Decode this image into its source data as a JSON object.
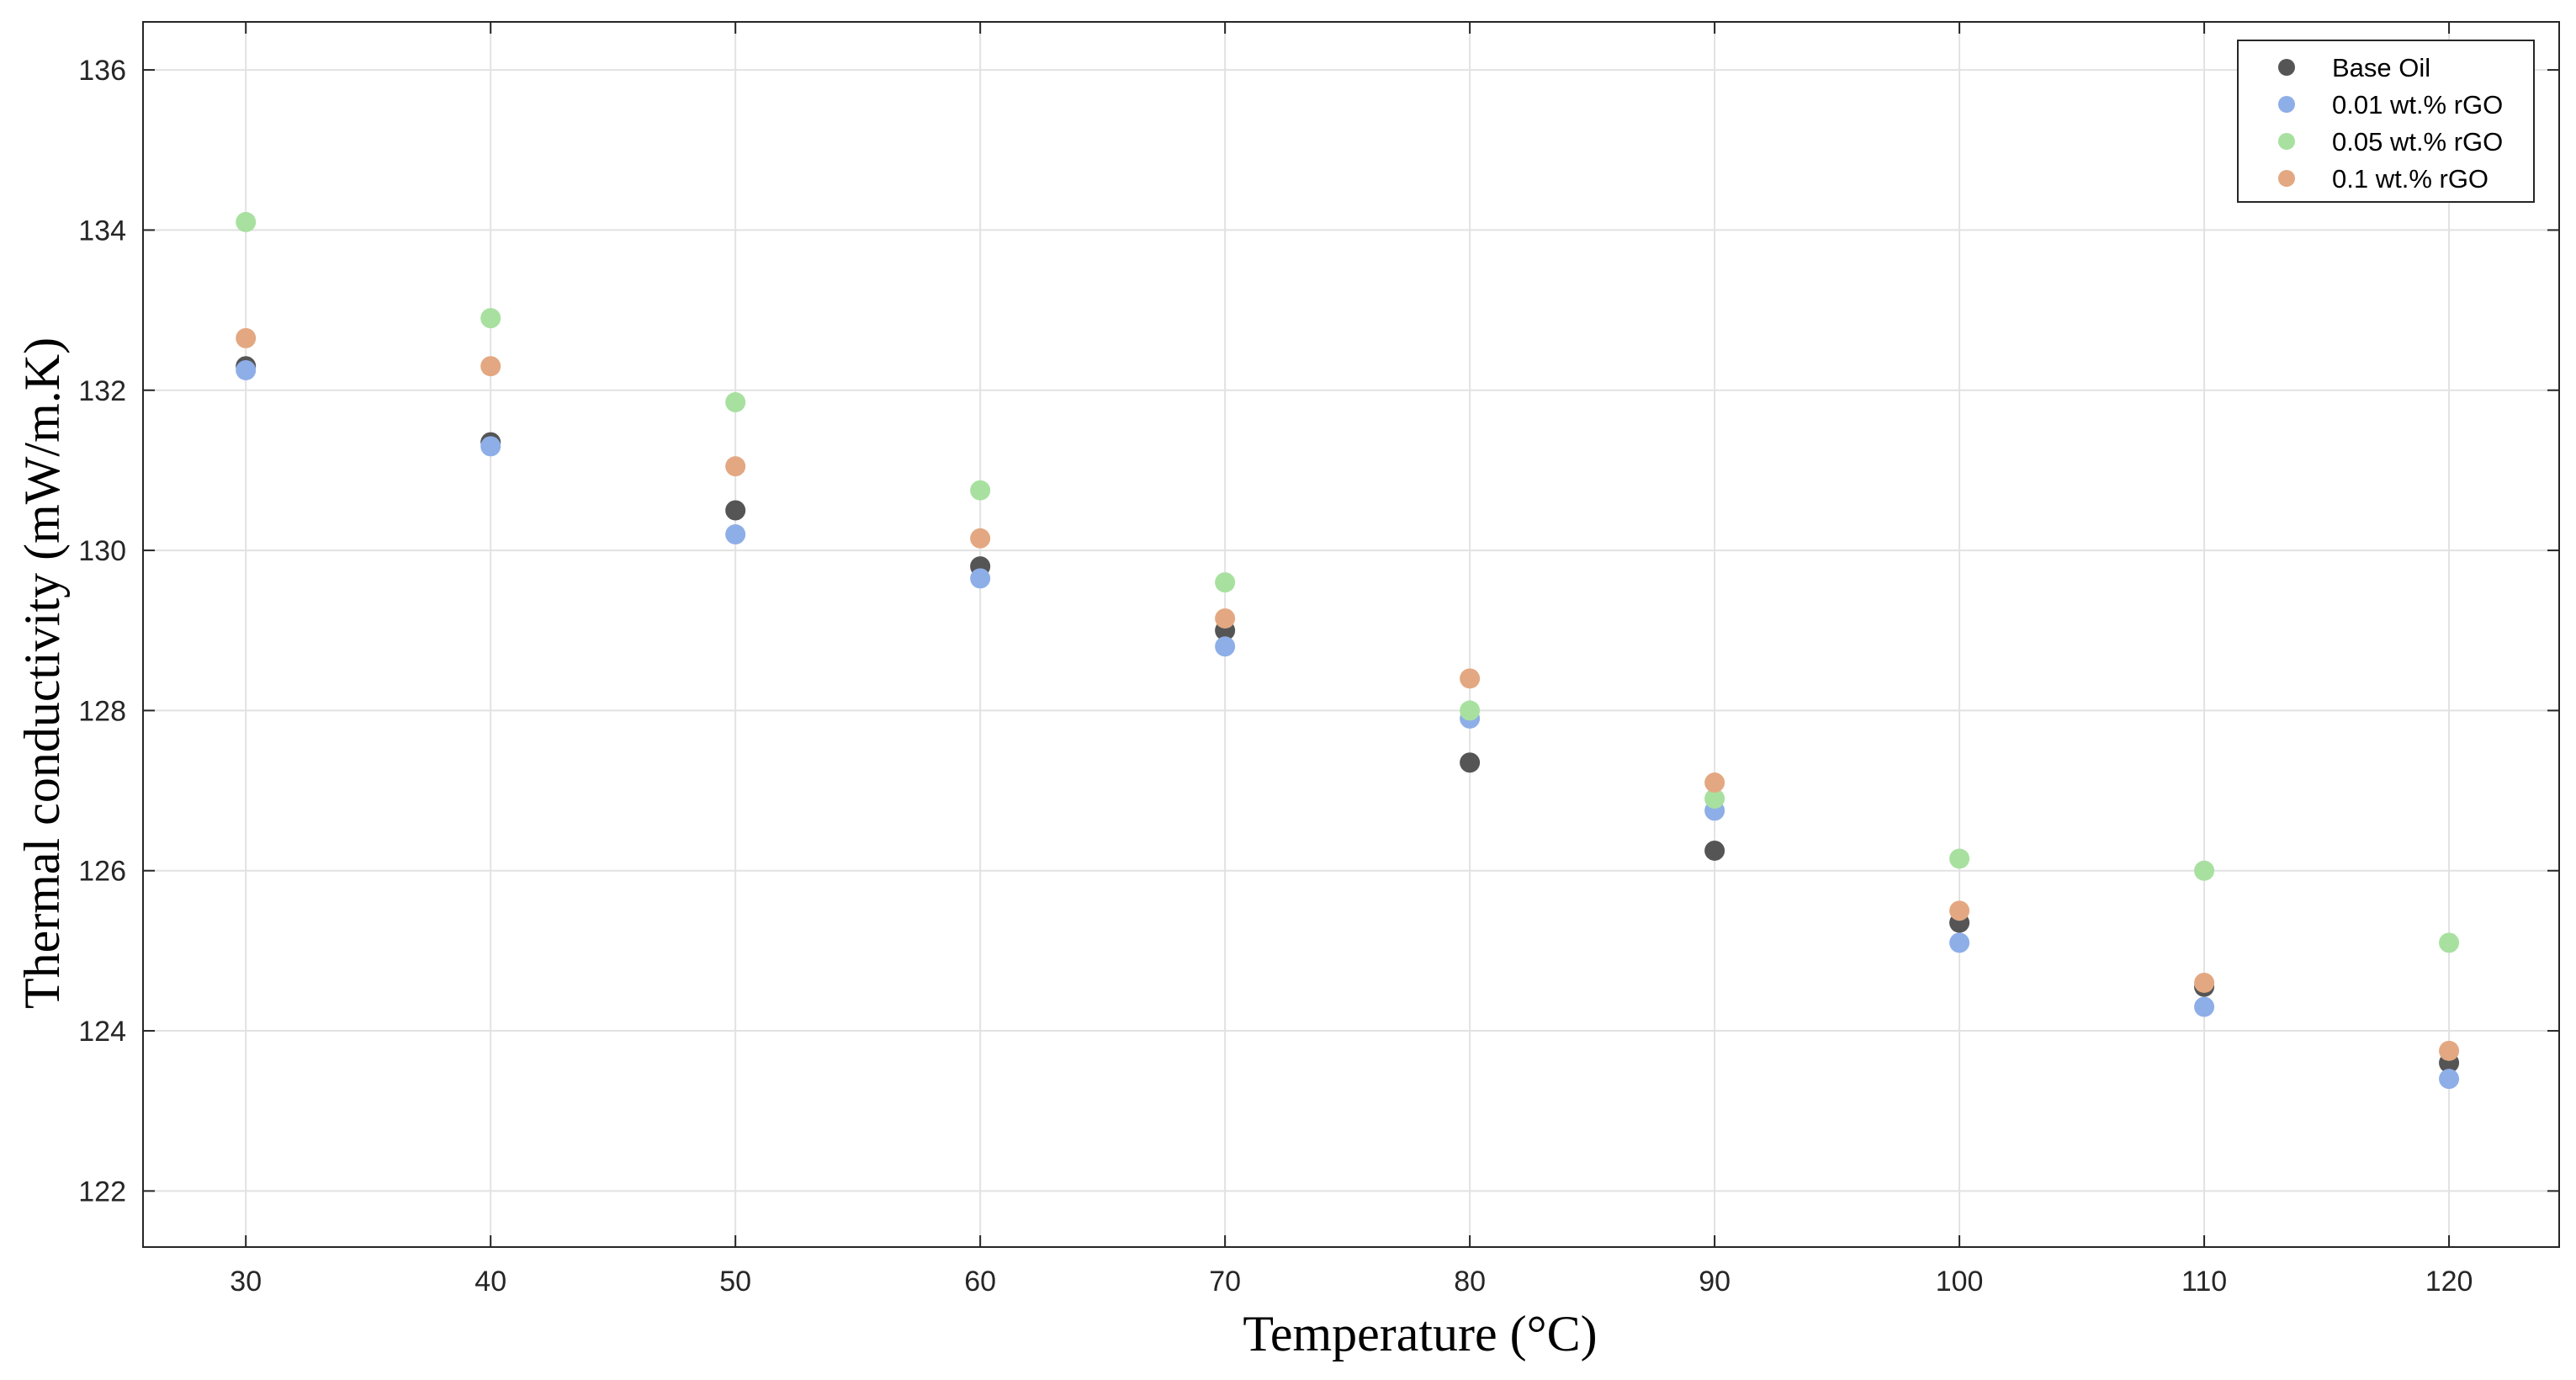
{
  "chart_data": {
    "type": "scatter",
    "xlabel": "Temperature (°C)",
    "ylabel": "Thermal conductivity (mW/m.K)",
    "xlim": [
      25.8,
      124.5
    ],
    "ylim": [
      121.3,
      136.6
    ],
    "x_ticks": [
      30,
      40,
      50,
      60,
      70,
      80,
      90,
      100,
      110,
      120
    ],
    "y_ticks": [
      122,
      124,
      126,
      128,
      130,
      132,
      134,
      136
    ],
    "grid": true,
    "legend_position": "top-right",
    "x": [
      30,
      40,
      50,
      60,
      70,
      80,
      90,
      100,
      110,
      120
    ],
    "series": [
      {
        "name": "Base Oil",
        "color": "#555555",
        "values": [
          132.3,
          131.35,
          130.5,
          129.8,
          129.0,
          127.35,
          126.25,
          125.35,
          124.55,
          123.6
        ]
      },
      {
        "name": "0.01 wt.% rGO",
        "color": "#8eaee8",
        "values": [
          132.25,
          131.3,
          130.2,
          129.65,
          128.8,
          127.9,
          126.75,
          125.1,
          124.3,
          123.4
        ]
      },
      {
        "name": "0.05 wt.% rGO",
        "color": "#a8e0a0",
        "values": [
          134.1,
          132.9,
          131.85,
          130.75,
          129.6,
          128.0,
          126.9,
          126.15,
          126.0,
          125.1
        ]
      },
      {
        "name": "0.1 wt.% rGO",
        "color": "#e3a882",
        "values": [
          132.65,
          132.3,
          131.05,
          130.15,
          129.15,
          128.4,
          127.1,
          125.5,
          124.6,
          123.75
        ]
      }
    ]
  }
}
